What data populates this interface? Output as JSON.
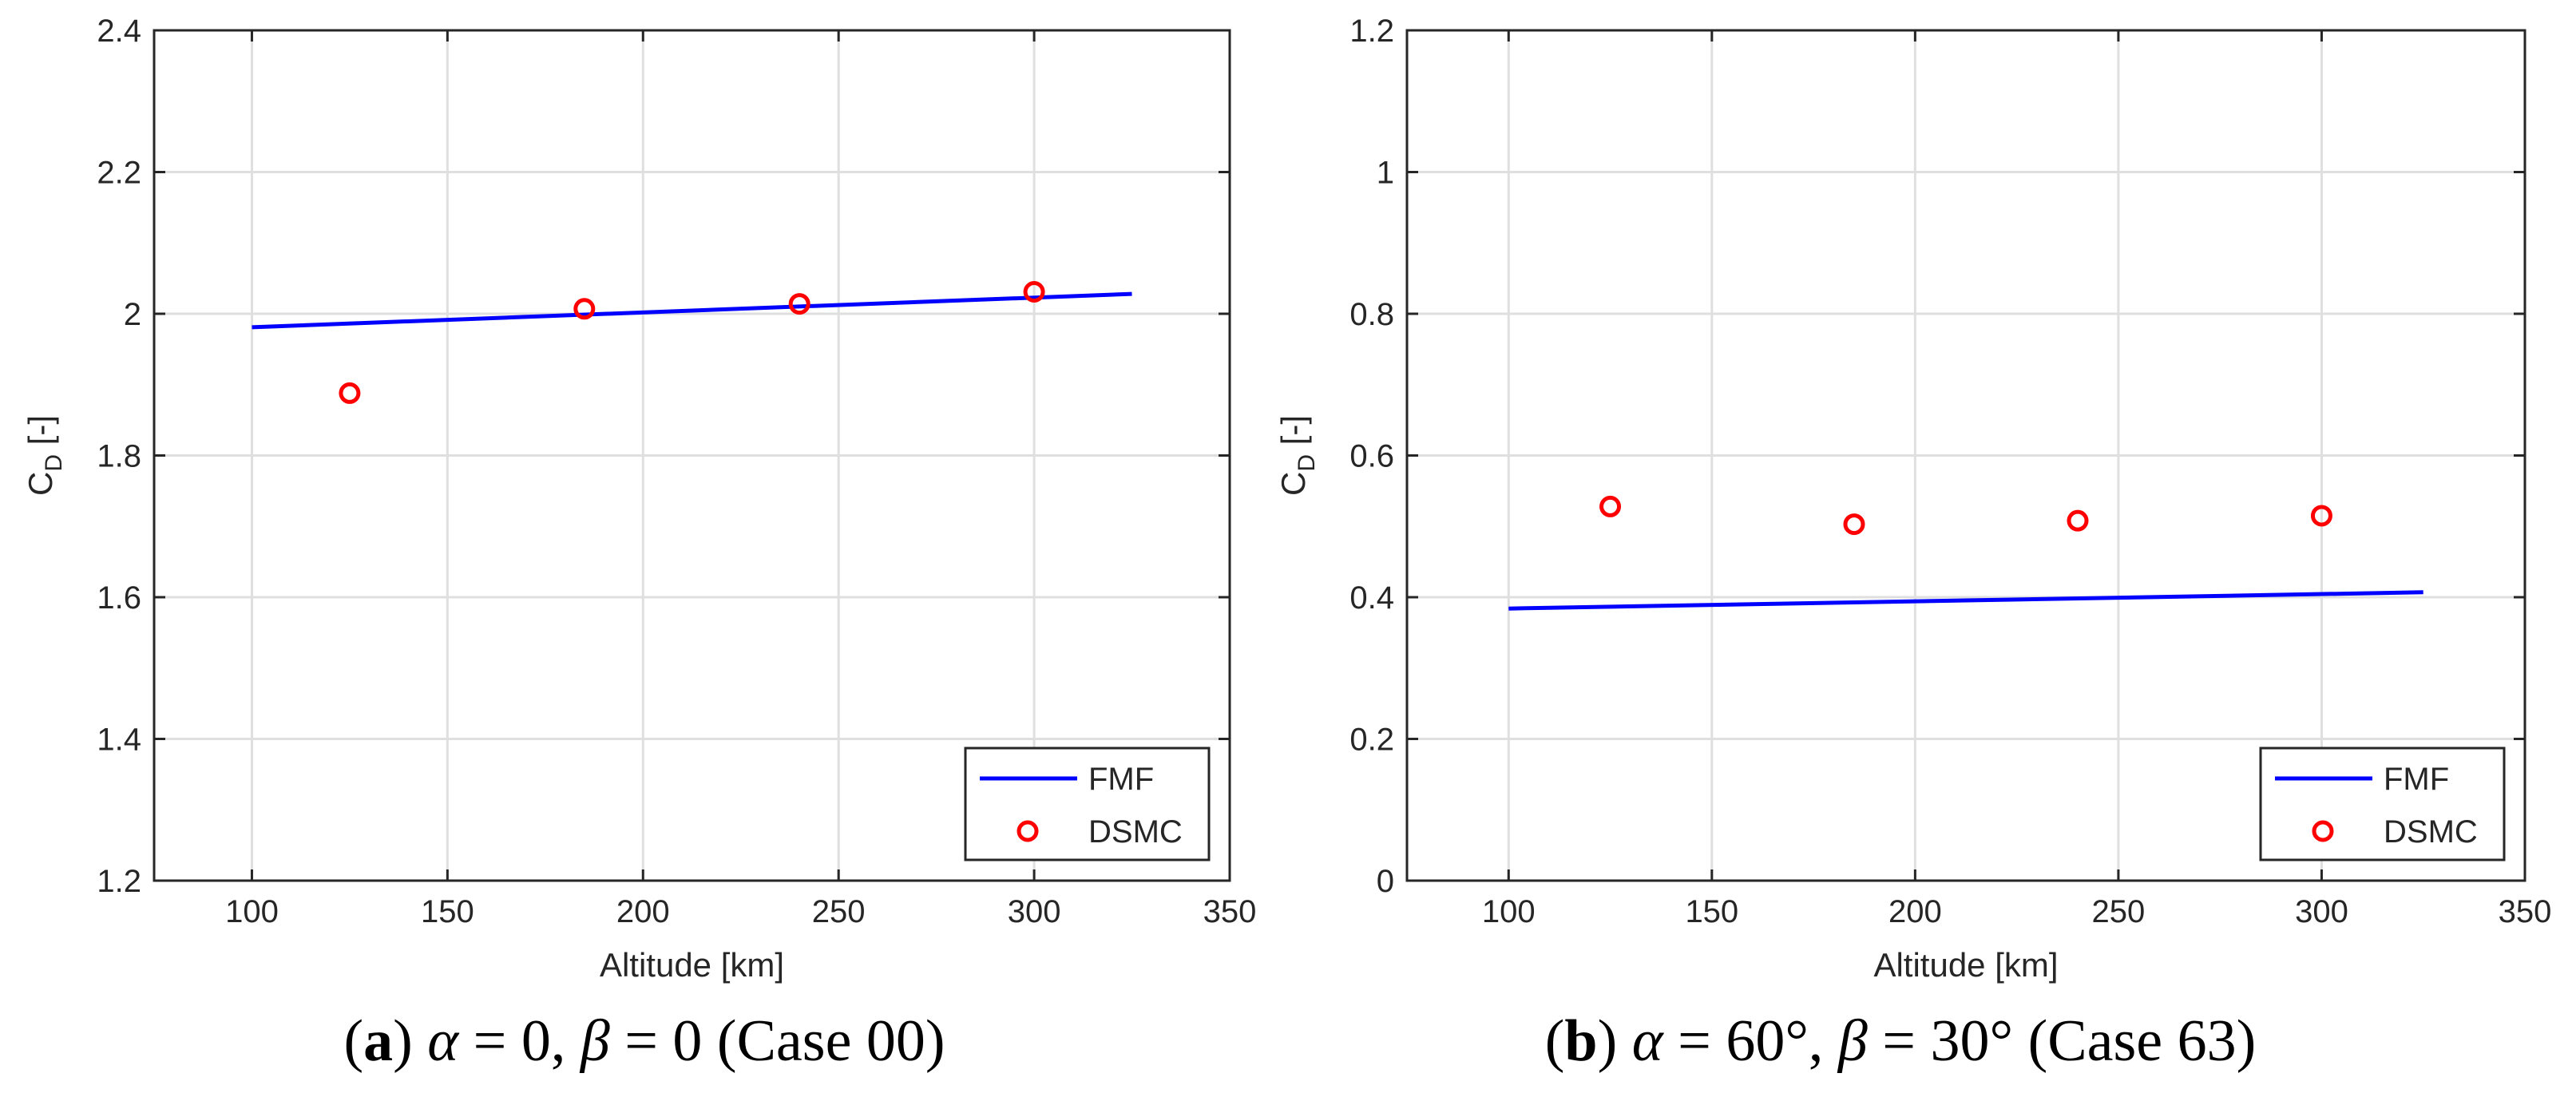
{
  "chart_data": [
    {
      "type": "line",
      "xlabel": "Altitude [km]",
      "ylabel_main": "C",
      "ylabel_sub": "D",
      "ylabel_suffix": " [-]",
      "xlim": [
        75,
        350
      ],
      "ylim": [
        1.2,
        2.4
      ],
      "xticks": [
        100,
        150,
        200,
        250,
        300,
        350
      ],
      "xtick_labels": [
        "100",
        "150",
        "200",
        "250",
        "300",
        "350"
      ],
      "yticks": [
        1.2,
        1.4,
        1.6,
        1.8,
        2,
        2.2,
        2.4
      ],
      "ytick_labels": [
        "1.2",
        "1.4",
        "1.6",
        "1.8",
        "2",
        "2.2",
        "2.4"
      ],
      "grid": true,
      "legend_position": "bottom-right",
      "series": [
        {
          "name": "FMF",
          "style": "line",
          "color": "#0000ff",
          "x": [
            100,
            325
          ],
          "y": [
            1.981,
            2.028
          ]
        },
        {
          "name": "DSMC",
          "style": "marker-circle",
          "color": "#ff0000",
          "x": [
            125,
            185,
            240,
            300
          ],
          "y": [
            1.888,
            2.007,
            2.014,
            2.031
          ]
        }
      ],
      "caption": {
        "tag": "a",
        "alpha": "0",
        "beta": "0",
        "case_label": "(Case 00)"
      }
    },
    {
      "type": "line",
      "xlabel": "Altitude [km]",
      "ylabel_main": "C",
      "ylabel_sub": "D",
      "ylabel_suffix": " [-]",
      "xlim": [
        75,
        350
      ],
      "ylim": [
        0,
        1.2
      ],
      "xticks": [
        100,
        150,
        200,
        250,
        300,
        350
      ],
      "xtick_labels": [
        "100",
        "150",
        "200",
        "250",
        "300",
        "350"
      ],
      "yticks": [
        0,
        0.2,
        0.4,
        0.6,
        0.8,
        1,
        1.2
      ],
      "ytick_labels": [
        "0",
        "0.2",
        "0.4",
        "0.6",
        "0.8",
        "1",
        "1.2"
      ],
      "grid": true,
      "legend_position": "bottom-right",
      "series": [
        {
          "name": "FMF",
          "style": "line",
          "color": "#0000ff",
          "x": [
            100,
            325
          ],
          "y": [
            0.384,
            0.407
          ]
        },
        {
          "name": "DSMC",
          "style": "marker-circle",
          "color": "#ff0000",
          "x": [
            125,
            185,
            240,
            300
          ],
          "y": [
            0.528,
            0.503,
            0.508,
            0.515
          ]
        }
      ],
      "caption": {
        "tag": "b",
        "alpha": "60°",
        "beta": "30°",
        "case_label": "(Case 63)"
      }
    }
  ]
}
